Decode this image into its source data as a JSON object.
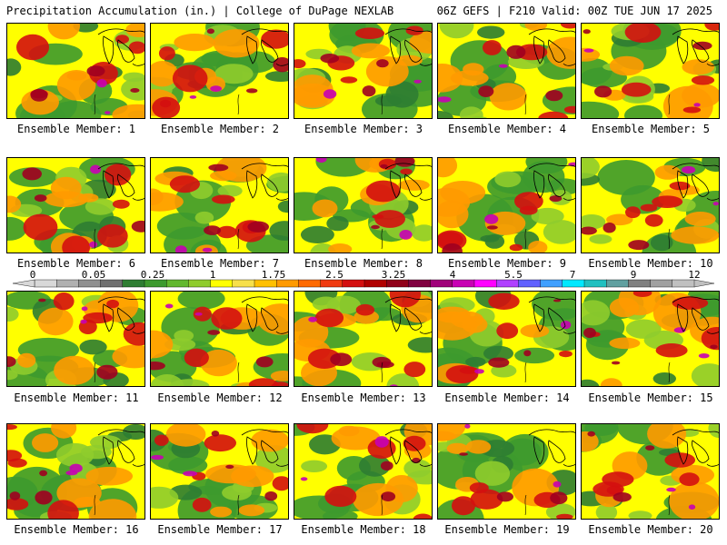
{
  "header": {
    "left": "Precipitation Accumulation (in.) | College of DuPage NEXLAB",
    "right": "06Z GEFS | F210 Valid: 00Z TUE JUN 17 2025"
  },
  "colorbar": {
    "tick_labels": [
      "0",
      "0.05",
      "0.25",
      "1",
      "1.75",
      "2.5",
      "3.25",
      "4",
      "5.5",
      "7",
      "9",
      "12"
    ],
    "colors": [
      "#d8d8d8",
      "#b0b0b0",
      "#909090",
      "#707070",
      "#2e7d32",
      "#3d9a2e",
      "#62b82e",
      "#8fcc2c",
      "#ffff00",
      "#f7e04a",
      "#ffc000",
      "#ff9a00",
      "#ff6a00",
      "#f03a10",
      "#d41010",
      "#b00000",
      "#900018",
      "#800040",
      "#a0007a",
      "#c800b4",
      "#ff00ff",
      "#b040ff",
      "#6060ff",
      "#40a0ff",
      "#00e8ff",
      "#20c0c0",
      "#60a0a0",
      "#808080",
      "#a0a0a0",
      "#c0c0c0"
    ]
  },
  "panels": [
    {
      "label": "Ensemble Member: 1"
    },
    {
      "label": "Ensemble Member: 2"
    },
    {
      "label": "Ensemble Member: 3"
    },
    {
      "label": "Ensemble Member: 4"
    },
    {
      "label": "Ensemble Member: 5"
    },
    {
      "label": "Ensemble Member: 6"
    },
    {
      "label": "Ensemble Member: 7"
    },
    {
      "label": "Ensemble Member: 8"
    },
    {
      "label": "Ensemble Member: 9"
    },
    {
      "label": "Ensemble Member: 10"
    },
    {
      "label": "Ensemble Member: 11"
    },
    {
      "label": "Ensemble Member: 12"
    },
    {
      "label": "Ensemble Member: 13"
    },
    {
      "label": "Ensemble Member: 14"
    },
    {
      "label": "Ensemble Member: 15"
    },
    {
      "label": "Ensemble Member: 16"
    },
    {
      "label": "Ensemble Member: 17"
    },
    {
      "label": "Ensemble Member: 18"
    },
    {
      "label": "Ensemble Member: 19"
    },
    {
      "label": "Ensemble Member: 20"
    }
  ]
}
